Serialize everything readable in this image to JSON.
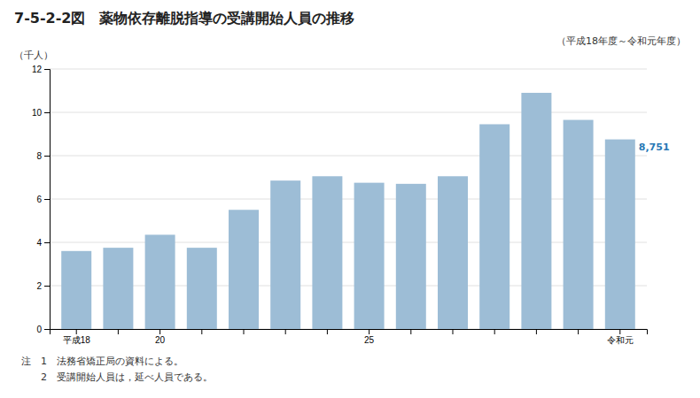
{
  "chart_data": {
    "type": "bar",
    "title": "7-5-2-2図　薬物依存離脱指導の受講開始人員の推移",
    "subtitle": "（平成18年度～令和元年度）",
    "y_label": "（千人）",
    "categories": [
      "平成18",
      null,
      "20",
      null,
      null,
      null,
      null,
      "25",
      null,
      null,
      null,
      null,
      null,
      "令和元"
    ],
    "values": [
      3.6,
      3.75,
      4.35,
      3.75,
      5.5,
      6.85,
      7.05,
      6.75,
      6.7,
      7.05,
      9.45,
      10.9,
      9.65,
      8.751
    ],
    "value_labels": [
      null,
      null,
      null,
      null,
      null,
      null,
      null,
      null,
      null,
      null,
      null,
      null,
      null,
      "8,751"
    ],
    "annotations": [
      "注　1　法務省矯正局の資料による。",
      "　　2　受講開始人員は，延べ人員である。"
    ],
    "color": "#9dbdd6",
    "ylim": [
      0,
      12
    ],
    "yticks": [
      0,
      2,
      4,
      6,
      8,
      10,
      12
    ],
    "grid": true
  }
}
